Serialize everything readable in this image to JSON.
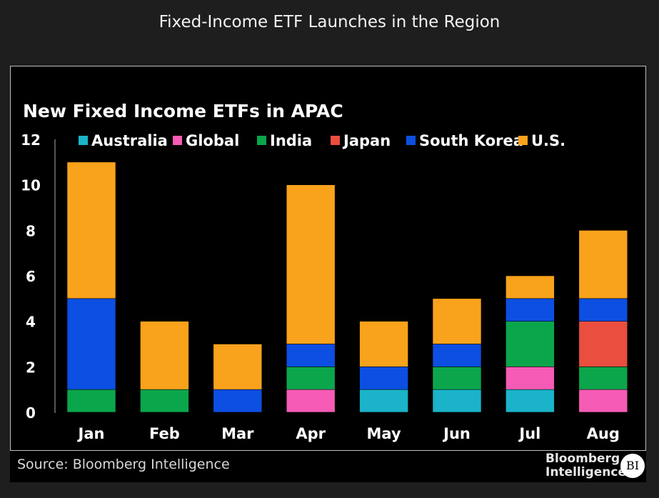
{
  "header": {
    "title": "Fixed-Income ETF Launches in the Region"
  },
  "footer": {
    "source": "Source: Bloomberg Intelligence",
    "logo_line1": "Bloomberg",
    "logo_line2": "Intelligence",
    "logo_badge": "BI"
  },
  "chart_data": {
    "type": "bar",
    "stacked": true,
    "title": "New Fixed Income ETFs in APAC",
    "xlabel": "",
    "ylabel": "",
    "ylim": [
      0,
      12
    ],
    "yticks": [
      0,
      2,
      4,
      6,
      8,
      10,
      12
    ],
    "legend_position": "top",
    "categories": [
      "Jan",
      "Feb",
      "Mar",
      "Apr",
      "May",
      "Jun",
      "Jul",
      "Aug"
    ],
    "series": [
      {
        "name": "Australia",
        "color": "#1bb3c9",
        "values": [
          0,
          0,
          0,
          0,
          1,
          1,
          1,
          0
        ]
      },
      {
        "name": "Global",
        "color": "#f65bb5",
        "values": [
          0,
          0,
          0,
          1,
          0,
          0,
          1,
          1
        ]
      },
      {
        "name": "India",
        "color": "#0ba64b",
        "values": [
          1,
          1,
          0,
          1,
          0,
          1,
          2,
          1
        ]
      },
      {
        "name": "Japan",
        "color": "#e94e3e",
        "values": [
          0,
          0,
          0,
          0,
          0,
          0,
          0,
          2
        ]
      },
      {
        "name": "South Korea",
        "color": "#0c4fe2",
        "values": [
          4,
          0,
          1,
          1,
          1,
          1,
          1,
          1
        ]
      },
      {
        "name": "U.S.",
        "color": "#f9a21c",
        "values": [
          6,
          3,
          2,
          7,
          2,
          2,
          1,
          3
        ]
      }
    ]
  }
}
